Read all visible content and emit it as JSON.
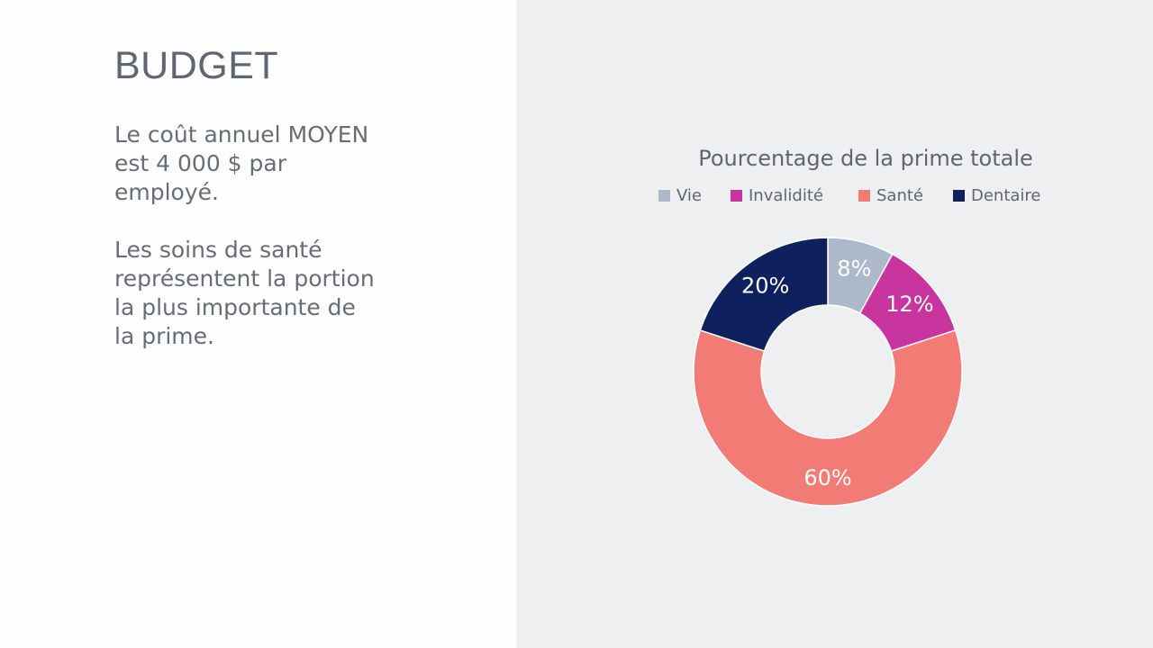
{
  "slide": {
    "title": "BUDGET",
    "paragraph_1": "Le coût annuel MOYEN est 4 000 $ par employé.",
    "paragraph_2": "Les soins de santé représentent la portion la plus importante de la prime."
  },
  "chart_data": {
    "type": "pie",
    "variant": "donut",
    "title": "Pourcentage de la prime totale",
    "categories": [
      "Vie",
      "Invalidité",
      "Santé",
      "Dentaire"
    ],
    "values": [
      8,
      12,
      60,
      20
    ],
    "labels": [
      "8%",
      "12%",
      "60%",
      "20%"
    ],
    "colors": [
      "#adb9ca",
      "#c9359e",
      "#f27b76",
      "#0f205e"
    ],
    "legend_position": "top",
    "xlabel": "",
    "ylabel": ""
  }
}
